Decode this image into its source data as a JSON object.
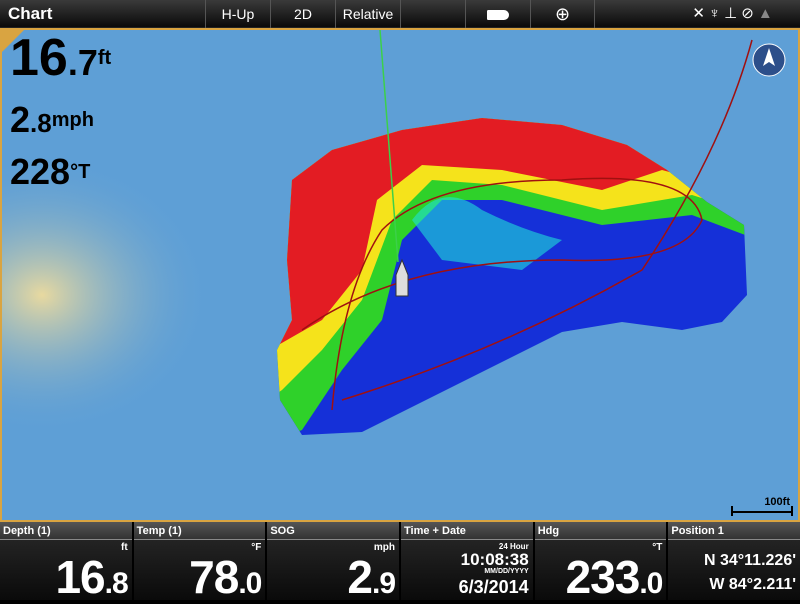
{
  "topbar": {
    "title": "Chart",
    "orientation": "H-Up",
    "view": "2D",
    "motion": "Relative",
    "icons": [
      "boat-icon",
      "crosshair-icon",
      "gps-icon",
      "sonar-icon",
      "depth-icon",
      "compass-icon",
      "nav-icon"
    ]
  },
  "overlay": {
    "depth_int": "16",
    "depth_dec": ".7",
    "depth_unit": "ft",
    "speed_int": "2",
    "speed_dec": ".8",
    "speed_unit": "mph",
    "heading": "228",
    "heading_unit": "°T"
  },
  "map": {
    "scale_label": "100ft",
    "water_color": "#5e9fd6",
    "depth_colors": [
      "#e31c23",
      "#f5e31b",
      "#2fd12a",
      "#1fe0d8",
      "#1530d8"
    ]
  },
  "panels": [
    {
      "label": "Depth (1)",
      "unit": "ft",
      "int": "16",
      "dec": ".8"
    },
    {
      "label": "Temp (1)",
      "unit": "°F",
      "int": "78",
      "dec": ".0"
    },
    {
      "label": "SOG",
      "unit": "mph",
      "int": "2",
      "dec": ".9"
    },
    {
      "label": "Time + Date",
      "format": "24 Hour",
      "time": "10:08:38",
      "date_format": "MM/DD/YYYY",
      "date": "6/3/2014"
    },
    {
      "label": "Hdg",
      "unit": "°T",
      "int": "233",
      "dec": ".0"
    },
    {
      "label": "Position 1",
      "lat": "N 34°11.226'",
      "lon": "W 84°2.211'"
    }
  ]
}
